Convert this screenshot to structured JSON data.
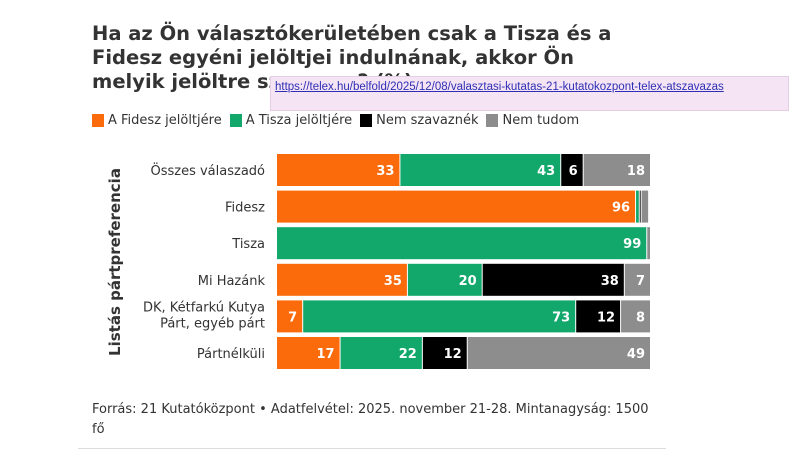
{
  "title": "Ha az Ön választókerületében csak a Tisza és a Fidesz egyéni jelöltjei indulnának, akkor Ön melyik jelöltre szavazna? (%)",
  "url": "https://telex.hu/belfold/2025/12/08/valasztasi-kutatas-21-kutatokozpont-telex-atszavazas",
  "source": "Forrás: 21 Kutatóközpont • Adatfelvétel: 2025. november 21-28. Mintanagyság: 1500 fő",
  "colors": {
    "fidesz": "#fb6a0b",
    "tisza": "#12a86b",
    "nem_szavaznek": "#000000",
    "nem_tudom": "#8d8d8d"
  },
  "chart_data": {
    "type": "bar",
    "orientation": "horizontal",
    "stacked": true,
    "title": "Ha az Ön választókerületében csak a Tisza és a Fidesz egyéni jelöltjei indulnának, akkor Ön melyik jelöltre szavazna? (%)",
    "ylabel": "Listás pártpreferencia",
    "xlabel": "",
    "xlim": [
      0,
      100
    ],
    "legend_position": "top",
    "categories": [
      "Összes válaszadó",
      "Fidesz",
      "Tisza",
      "Mi Hazánk",
      "DK, Kétfarkú Kutya Párt, egyéb párt",
      "Pártnélküli"
    ],
    "series": [
      {
        "name": "A Fidesz jelöltjére",
        "color_key": "fidesz",
        "values": [
          33,
          96,
          0,
          35,
          7,
          17
        ],
        "labels": [
          "33",
          "96",
          "",
          "35",
          "7",
          "17"
        ]
      },
      {
        "name": "A Tisza jelöltjére",
        "color_key": "tisza",
        "values": [
          43,
          1,
          99,
          20,
          73,
          22
        ],
        "labels": [
          "43",
          "",
          "99",
          "20",
          "73",
          "22"
        ]
      },
      {
        "name": "Nem szavaznék",
        "color_key": "nem_szavaznek",
        "values": [
          6,
          0.5,
          0,
          38,
          12,
          12
        ],
        "labels": [
          "6",
          "",
          "",
          "38",
          "12",
          "12"
        ]
      },
      {
        "name": "Nem tudom",
        "color_key": "nem_tudom",
        "values": [
          18,
          2,
          1,
          7,
          8,
          49
        ],
        "labels": [
          "18",
          "",
          "",
          "7",
          "8",
          "49"
        ]
      }
    ]
  }
}
